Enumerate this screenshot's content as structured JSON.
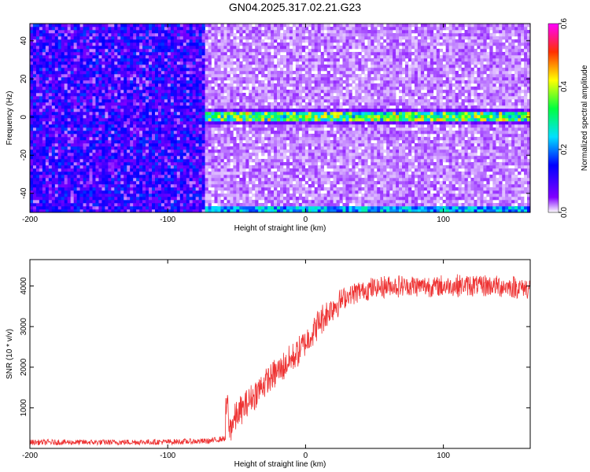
{
  "title": "GN04.2025.317.02.21.G23",
  "chart_data": [
    {
      "type": "heatmap",
      "xlabel": "Height of straight line (km)",
      "ylabel": "Frequency (Hz)",
      "xlim": [
        -200,
        163
      ],
      "ylim": [
        -50,
        49
      ],
      "x_ticks": [
        -200,
        -100,
        0,
        100
      ],
      "y_ticks": [
        -40,
        -20,
        0,
        20,
        40
      ],
      "colorbar": {
        "label": "Normalized spectral amplitude",
        "range": [
          0.0,
          0.6
        ],
        "ticks": [
          "0.0",
          "0.2",
          "0.4",
          "0.6"
        ],
        "colormap": [
          "#ffffff",
          "#7700ee",
          "#0000ff",
          "#00ffff",
          "#00ff00",
          "#ffff00",
          "#ff0000",
          "#ff00ff"
        ]
      },
      "features": {
        "signal_onset_km": -72,
        "carrier_frequency_hz": 0,
        "edge_band_frequency_hz": -49,
        "low_region_amplitude": 0.1,
        "high_region_amplitude": 0.02,
        "carrier_amplitude": 0.35
      }
    },
    {
      "type": "line",
      "xlabel": "Height of straight line (km)",
      "ylabel": "SNR (10 * v/v)",
      "xlim": [
        -200,
        163
      ],
      "ylim": [
        0,
        4650
      ],
      "x_ticks": [
        -200,
        -100,
        0,
        100
      ],
      "y_ticks": [
        1000,
        2000,
        3000,
        4000
      ],
      "color": "#ee3333",
      "x": [
        -200,
        -150,
        -100,
        -70,
        -58,
        -55,
        -50,
        -40,
        -30,
        -20,
        -10,
        0,
        10,
        20,
        30,
        40,
        50,
        60,
        80,
        100,
        120,
        140,
        163
      ],
      "y": [
        150,
        150,
        160,
        180,
        250,
        500,
        800,
        1200,
        1600,
        1900,
        2200,
        2600,
        3100,
        3500,
        3750,
        3880,
        3950,
        4000,
        4000,
        4000,
        4020,
        4000,
        3950
      ]
    }
  ]
}
